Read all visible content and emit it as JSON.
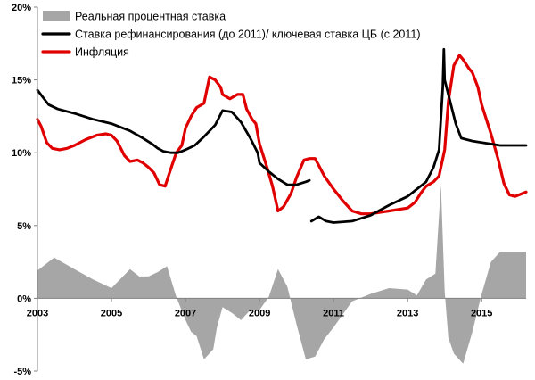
{
  "chart_data": {
    "type": "line",
    "x_ticks": [
      "2003",
      "2005",
      "2007",
      "2009",
      "2011",
      "2013",
      "2015"
    ],
    "y_ticks": [
      "20%",
      "15%",
      "10%",
      "5%",
      "0%",
      "-5%"
    ],
    "xlim": [
      2003,
      2016.2
    ],
    "ylim": [
      -5,
      20
    ],
    "grid": false,
    "legend_position": "top-left",
    "colors": {
      "real_rate": "#a6a6a6",
      "refinancing_rate": "#000000",
      "inflation": "#e00000",
      "axis": "#808080"
    },
    "series": [
      {
        "name": "Реальная процентная ставка",
        "kind": "area",
        "x": [
          2003.0,
          2003.45,
          2004.0,
          2004.5,
          2005.0,
          2005.5,
          2005.75,
          2006.0,
          2006.25,
          2006.5,
          2006.75,
          2007.0,
          2007.15,
          2007.3,
          2007.5,
          2007.75,
          2007.85,
          2008.0,
          2008.25,
          2008.5,
          2008.75,
          2009.0,
          2009.25,
          2009.5,
          2009.75,
          2010.0,
          2010.25,
          2010.5,
          2010.75,
          2011.0,
          2011.5,
          2012.0,
          2012.5,
          2013.0,
          2013.25,
          2013.5,
          2013.75,
          2013.9,
          2014.0,
          2014.1,
          2014.25,
          2014.5,
          2014.75,
          2015.0,
          2015.25,
          2015.5,
          2015.75,
          2016.2
        ],
        "values": [
          1.9,
          2.8,
          2.0,
          1.3,
          0.7,
          2.0,
          1.5,
          1.5,
          1.8,
          2.2,
          0.1,
          -1.5,
          -2.3,
          -2.6,
          -4.2,
          -3.5,
          -2.0,
          -0.6,
          -1.0,
          -1.5,
          -0.8,
          -0.8,
          0.1,
          2.0,
          0.8,
          -1.8,
          -4.2,
          -4.0,
          -2.8,
          -2.0,
          -0.2,
          0.3,
          0.7,
          0.6,
          0.2,
          1.3,
          1.7,
          7.8,
          0.5,
          -2.7,
          -3.8,
          -4.5,
          -2.3,
          0.3,
          2.5,
          3.2,
          3.2,
          3.2
        ]
      },
      {
        "name": "Ставка рефинансирования (до 2011)/ ключевая ставка ЦБ (с 2011)",
        "kind": "line",
        "segments": [
          {
            "x": [
              2003.0,
              2003.15,
              2003.3,
              2003.55,
              2004.0,
              2004.5,
              2005.0,
              2005.5,
              2005.85,
              2006.1,
              2006.25,
              2006.4,
              2006.6,
              2006.8,
              2007.0,
              2007.25,
              2007.5,
              2007.8,
              2008.0,
              2008.25,
              2008.5,
              2008.75,
              2008.95,
              2009.0,
              2009.25,
              2009.5,
              2009.75,
              2010.0,
              2010.25,
              2010.35
            ],
            "values": [
              14.3,
              13.8,
              13.3,
              13.0,
              12.7,
              12.3,
              12.0,
              11.5,
              11.0,
              10.6,
              10.3,
              10.1,
              10.0,
              10.0,
              10.2,
              10.5,
              11.1,
              11.9,
              12.9,
              12.8,
              12.1,
              11.0,
              10.0,
              9.3,
              8.7,
              8.2,
              7.8,
              7.8,
              8.0,
              8.1
            ]
          },
          {
            "x": [
              2010.4,
              2010.6,
              2010.8,
              2011.0,
              2011.5,
              2012.0,
              2012.5,
              2013.0,
              2013.25,
              2013.5,
              2013.7,
              2013.85,
              2013.95,
              2013.98,
              2014.0,
              2014.15,
              2014.3,
              2014.45,
              2014.75,
              2015.0,
              2015.25,
              2015.5,
              2015.75,
              2016.2
            ],
            "values": [
              5.3,
              5.6,
              5.3,
              5.2,
              5.3,
              5.7,
              6.4,
              7.0,
              7.5,
              8.0,
              9.0,
              10.2,
              14.5,
              17.1,
              15.0,
              13.5,
              12.0,
              11.0,
              10.8,
              10.7,
              10.6,
              10.5,
              10.5,
              10.5
            ]
          }
        ]
      },
      {
        "name": "Инфляция",
        "kind": "line",
        "x": [
          2003.0,
          2003.1,
          2003.25,
          2003.4,
          2003.6,
          2003.8,
          2004.0,
          2004.3,
          2004.6,
          2004.85,
          2005.0,
          2005.15,
          2005.35,
          2005.5,
          2005.7,
          2005.85,
          2006.0,
          2006.15,
          2006.3,
          2006.45,
          2006.55,
          2006.75,
          2006.9,
          2007.0,
          2007.15,
          2007.3,
          2007.5,
          2007.65,
          2007.8,
          2007.95,
          2008.0,
          2008.2,
          2008.4,
          2008.55,
          2008.65,
          2008.8,
          2008.9,
          2009.0,
          2009.2,
          2009.35,
          2009.5,
          2009.65,
          2009.85,
          2010.0,
          2010.2,
          2010.35,
          2010.5,
          2010.75,
          2011.0,
          2011.25,
          2011.5,
          2011.75,
          2012.0,
          2012.25,
          2012.5,
          2012.75,
          2013.0,
          2013.2,
          2013.35,
          2013.5,
          2013.7,
          2013.85,
          2013.95,
          2014.0,
          2014.1,
          2014.25,
          2014.4,
          2014.5,
          2014.65,
          2014.75,
          2014.9,
          2015.0,
          2015.25,
          2015.45,
          2015.6,
          2015.75,
          2015.9,
          2016.2
        ],
        "values": [
          12.3,
          11.8,
          10.7,
          10.3,
          10.2,
          10.3,
          10.5,
          10.9,
          11.2,
          11.3,
          11.2,
          10.8,
          9.8,
          9.4,
          9.5,
          9.3,
          9.0,
          8.6,
          7.8,
          7.7,
          8.5,
          10.0,
          10.5,
          11.7,
          12.5,
          13.1,
          13.4,
          15.2,
          15.0,
          14.5,
          14.0,
          13.7,
          14.0,
          14.0,
          13.0,
          12.3,
          12.0,
          10.6,
          9.0,
          7.7,
          6.0,
          6.3,
          7.2,
          8.3,
          9.5,
          9.6,
          9.6,
          8.4,
          7.5,
          6.7,
          6.0,
          5.8,
          5.8,
          5.9,
          6.0,
          6.1,
          6.2,
          6.6,
          7.2,
          7.7,
          8.0,
          8.4,
          9.6,
          10.2,
          13.5,
          16.0,
          16.7,
          16.4,
          15.8,
          15.5,
          14.5,
          13.3,
          11.3,
          9.5,
          7.9,
          7.1,
          7.0,
          7.3
        ]
      }
    ]
  }
}
